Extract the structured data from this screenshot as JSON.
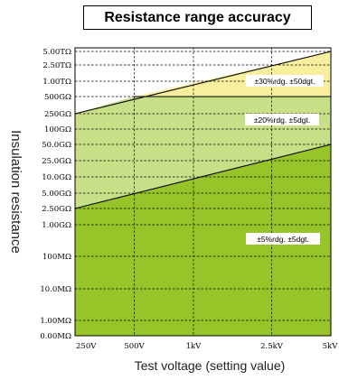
{
  "chart_data": {
    "type": "area",
    "title": "Resistance range accuracy",
    "xlabel": "Test voltage (setting value)",
    "ylabel": "Insulation resistance",
    "x_scale": "log",
    "x_ticks": [
      {
        "value": 250,
        "label": "250V"
      },
      {
        "value": 500,
        "label": "500V"
      },
      {
        "value": 1000,
        "label": "1kV"
      },
      {
        "value": 2500,
        "label": "2.5kV"
      },
      {
        "value": 5000,
        "label": "5kV"
      }
    ],
    "y_ticks": [
      "5.00TΩ",
      "2.50TΩ",
      "1.00TΩ",
      "500GΩ",
      "250GΩ",
      "100GΩ",
      "50.0GΩ",
      "25.0GΩ",
      "10.0GΩ",
      "5.00GΩ",
      "2.50GΩ",
      "1.00GΩ",
      "100MΩ",
      "10.0MΩ",
      "1.00MΩ",
      "0.00MΩ"
    ],
    "grid": true,
    "zones": [
      {
        "label": "±30%rdg. ±50dgt.",
        "color": "#f7ee9e"
      },
      {
        "label": "±20%rdg. ±5dgt.",
        "color": "#c7df87"
      },
      {
        "label": "±5%rdg. ±5dgt.",
        "color": "#97c428"
      }
    ],
    "boundaries": [
      {
        "points": [
          [
            250,
            "250GΩ"
          ],
          [
            5000,
            "5.00TΩ"
          ]
        ]
      },
      {
        "points": [
          [
            250,
            "2.50GΩ"
          ],
          [
            5000,
            "50.0GΩ"
          ]
        ]
      }
    ]
  }
}
